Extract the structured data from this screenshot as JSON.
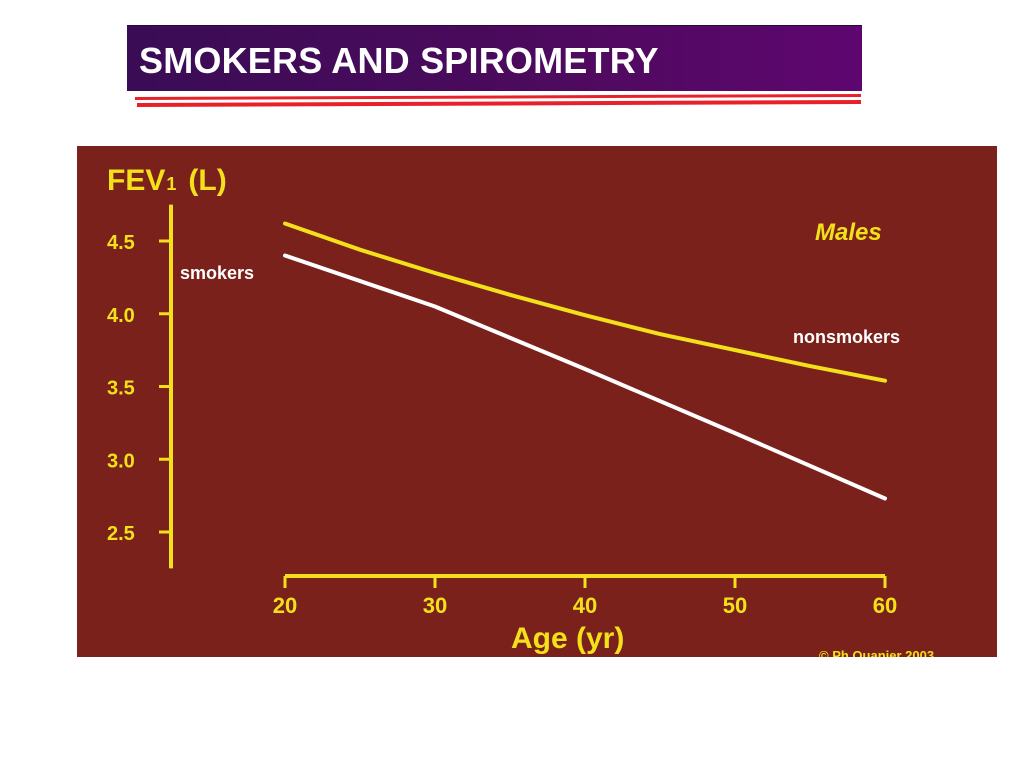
{
  "slide": {
    "title": "SMOKERS AND SPIROMETRY"
  },
  "colors": {
    "title_bg": "#4e0a5e",
    "accent_rule": "#e8202a",
    "chart_bg": "#7b211b",
    "axis": "#f2e11a",
    "nonsmokers_line": "#f2e11a",
    "smokers_line": "#ffffff",
    "label_text": "#ffffff"
  },
  "chart_data": {
    "type": "line",
    "title": "Males",
    "ylabel": "FEV1 (L)",
    "ylabel_main": "FEV",
    "ylabel_sub": "1",
    "ylabel_unit": "(L)",
    "xlabel": "Age (yr)",
    "xlim": [
      20,
      60
    ],
    "ylim": [
      2.25,
      4.75
    ],
    "x_ticks": [
      20,
      30,
      40,
      50,
      60
    ],
    "x_tick_labels": [
      "20",
      "30",
      "40",
      "50",
      "60"
    ],
    "y_ticks": [
      4.5,
      4.0,
      3.5,
      3.0,
      2.5
    ],
    "y_tick_labels": [
      "4.5",
      "4.0",
      "3.5",
      "3.0",
      "2.5"
    ],
    "grid": false,
    "series": [
      {
        "name": "nonsmokers",
        "color": "#f2e11a",
        "x": [
          20,
          25,
          30,
          35,
          40,
          45,
          50,
          55,
          60
        ],
        "y": [
          4.62,
          4.44,
          4.28,
          4.13,
          3.99,
          3.86,
          3.75,
          3.64,
          3.54
        ]
      },
      {
        "name": "smokers",
        "color": "#ffffff",
        "x": [
          20,
          30,
          40,
          50,
          60
        ],
        "y": [
          4.4,
          4.05,
          3.62,
          3.18,
          2.73
        ]
      }
    ],
    "copyright": "© Ph Quanjer 2003"
  }
}
